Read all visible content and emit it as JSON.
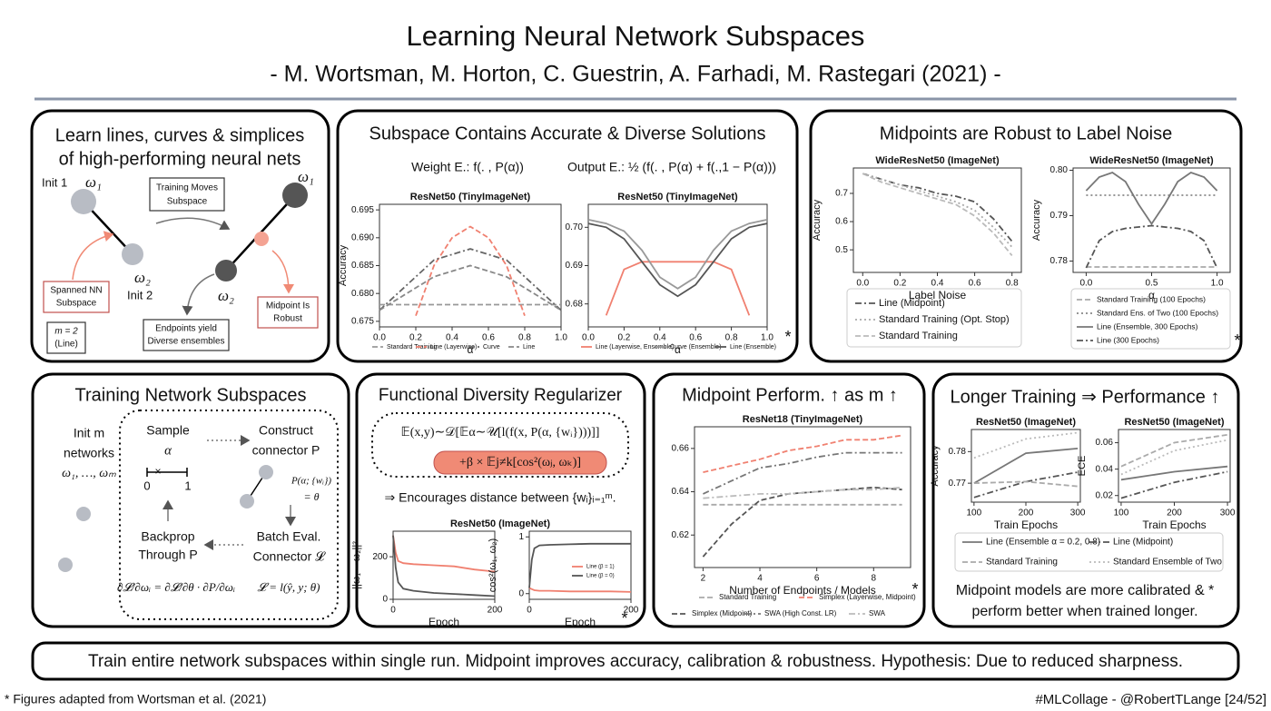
{
  "header": {
    "title": "Learning Neural Network Subspaces",
    "subtitle": "- M. Wortsman, M. Horton, C. Guestrin, A. Farhadi, M. Rastegari (2021) -"
  },
  "panels": [
    {
      "title": [
        "Learn lines, curves & simplices",
        "of high-performing neural nets"
      ],
      "labels": [
        "Init 1",
        "ω₁",
        "ω₂",
        "Init 2",
        "Training Moves",
        "Subspace",
        "ω₁",
        "ω₂",
        "Spanned NN",
        "Subspace",
        "Midpoint Is",
        "Robust",
        "Endpoints yield",
        "Diverse ensembles",
        "m = 2",
        "(Line)"
      ]
    },
    {
      "title": "Subspace Contains Accurate & Diverse Solutions",
      "captions": [
        "Weight E.: f(. , P(α))",
        "Output E.: ½ (f(. , P(α) + f(.,1 − P(α)))"
      ],
      "asterisk": "*",
      "charts": [
        {
          "type": "line",
          "title": "ResNet50 (TinyImageNet)",
          "xlabel": "α",
          "ylabel": "Accuracy",
          "x": [
            0,
            0.1,
            0.2,
            0.3,
            0.4,
            0.5,
            0.6,
            0.7,
            0.8,
            0.9,
            1
          ],
          "xlim": [
            0,
            1
          ],
          "xticks": [
            {
              "value": 0,
              "label": "0.0"
            },
            0.2,
            0.4,
            0.6,
            0.8,
            {
              "value": 1,
              "label": "1.0"
            }
          ],
          "ylim": [
            0.674,
            0.696
          ],
          "yticks": [
            0.675,
            {
              "value": 0.68,
              "label": "0.680"
            },
            0.685,
            {
              "value": 0.69,
              "label": "0.690"
            },
            0.695
          ],
          "series": [
            {
              "name": "Standard Training",
              "color": "#999999",
              "dash": "dashed",
              "values": [
                0.678,
                0.678,
                0.678,
                0.678,
                0.678,
                0.678,
                0.678,
                0.678,
                0.678,
                0.678,
                0.678
              ]
            },
            {
              "name": "Line (Layerwise)",
              "color": "#f08070",
              "dash": "dashed",
              "values": [
                null,
                null,
                0.676,
                0.685,
                0.69,
                0.692,
                0.69,
                0.685,
                0.676,
                null,
                null
              ]
            },
            {
              "name": "Curve",
              "color": "#666666",
              "dash": "dashdot",
              "values": [
                0.677,
                0.68,
                0.683,
                0.686,
                0.687,
                0.688,
                0.687,
                0.686,
                0.683,
                0.68,
                0.677
              ]
            },
            {
              "name": "Line",
              "color": "#888888",
              "dash": "dashed",
              "values": [
                0.677,
                0.679,
                0.681,
                0.683,
                0.684,
                0.685,
                0.684,
                0.683,
                0.681,
                0.679,
                0.677
              ]
            }
          ]
        },
        {
          "type": "line",
          "title": "ResNet50 (TinyImageNet)",
          "xlabel": "α",
          "x": [
            0,
            0.1,
            0.2,
            0.3,
            0.4,
            0.5,
            0.6,
            0.7,
            0.8,
            0.9,
            1
          ],
          "xlim": [
            0,
            1
          ],
          "xticks": [
            {
              "value": 0,
              "label": "0.0"
            },
            0.2,
            0.4,
            0.6,
            0.8,
            {
              "value": 1,
              "label": "1.0"
            }
          ],
          "ylim": [
            0.674,
            0.706
          ],
          "yticks": [
            0.68,
            0.69,
            {
              "value": 0.7,
              "label": "0.70"
            }
          ],
          "series": [
            {
              "name": "Line (Layerwise, Ensemble)",
              "color": "#f08070",
              "dash": "solid",
              "values": [
                null,
                0.677,
                0.689,
                0.691,
                0.691,
                0.691,
                0.691,
                0.691,
                0.689,
                0.677,
                null
              ]
            },
            {
              "name": "Curve (Ensemble)",
              "color": "#999999",
              "dash": "solid",
              "values": [
                0.702,
                0.701,
                0.699,
                0.694,
                0.687,
                0.684,
                0.687,
                0.694,
                0.699,
                0.701,
                0.702
              ]
            },
            {
              "name": "Line (Ensemble)",
              "color": "#555555",
              "dash": "solid",
              "values": [
                0.701,
                0.7,
                0.697,
                0.691,
                0.685,
                0.682,
                0.685,
                0.691,
                0.697,
                0.7,
                0.701
              ]
            }
          ]
        }
      ]
    },
    {
      "title": "Midpoints are Robust to Label Noise",
      "asterisk": "*",
      "charts": [
        {
          "type": "line",
          "title": "WideResNet50 (ImageNet)",
          "xlabel": "Label Noise",
          "ylabel": "Accuracy",
          "x": [
            0,
            0.1,
            0.2,
            0.3,
            0.4,
            0.5,
            0.6,
            0.7,
            0.8
          ],
          "xlim": [
            -0.05,
            0.85
          ],
          "xticks": [
            {
              "value": 0,
              "label": "0.0"
            },
            0.2,
            0.4,
            0.6,
            0.8
          ],
          "ylim": [
            0.42,
            0.79
          ],
          "yticks": [
            0.5,
            0.6,
            0.7
          ],
          "series": [
            {
              "name": "Line (Midpoint)",
              "color": "#555555",
              "dash": "dashdot",
              "values": [
                0.77,
                0.75,
                0.73,
                0.72,
                0.7,
                0.69,
                0.67,
                0.61,
                0.53
              ]
            },
            {
              "name": "Standard Training (Opt. Stop)",
              "color": "#aaaaaa",
              "dash": "dotted",
              "values": [
                0.77,
                0.75,
                0.73,
                0.71,
                0.69,
                0.67,
                0.64,
                0.58,
                0.51
              ]
            },
            {
              "name": "Standard Training",
              "color": "#bbbbbb",
              "dash": "dashed",
              "values": [
                0.77,
                0.74,
                0.72,
                0.7,
                0.68,
                0.66,
                0.62,
                0.56,
                0.48
              ]
            }
          ]
        },
        {
          "type": "line",
          "title": "WideResNet50 (ImageNet)",
          "xlabel": "α",
          "ylabel": "Accuracy",
          "x": [
            0,
            0.1,
            0.2,
            0.3,
            0.4,
            0.5,
            0.6,
            0.7,
            0.8,
            0.9,
            1
          ],
          "xlim": [
            -0.1,
            1.1
          ],
          "xticks": [
            {
              "value": 0,
              "label": "0.0"
            },
            0.5,
            {
              "value": 1,
              "label": "1.0"
            }
          ],
          "ylim": [
            0.7775,
            0.8005
          ],
          "yticks": [
            0.78,
            0.79,
            {
              "value": 0.8,
              "label": "0.80"
            }
          ],
          "series": [
            {
              "name": "Standard Training (100 Epochs)",
              "color": "#aaaaaa",
              "dash": "dashed",
              "values": [
                0.7787,
                0.7787,
                0.7787,
                0.7787,
                0.7787,
                0.7787,
                0.7787,
                0.7787,
                0.7787,
                0.7787,
                0.7787
              ]
            },
            {
              "name": "Standard Ens. of Two (100 Epochs)",
              "color": "#888888",
              "dash": "dotted",
              "values": [
                0.7945,
                0.7945,
                0.7945,
                0.7945,
                0.7945,
                0.7945,
                0.7945,
                0.7945,
                0.7945,
                0.7945,
                0.7945
              ]
            },
            {
              "name": "Line (Ensemble, 300 Epochs)",
              "color": "#777777",
              "dash": "solid",
              "values": [
                0.7955,
                0.7985,
                0.7995,
                0.7975,
                0.7925,
                0.7882,
                0.7925,
                0.7975,
                0.7995,
                0.7985,
                0.7955
              ]
            },
            {
              "name": "Line (300 Epochs)",
              "color": "#555555",
              "dash": "dashdot",
              "values": [
                0.7785,
                0.7845,
                0.7865,
                0.7872,
                0.7875,
                0.7878,
                0.7875,
                0.7872,
                0.7865,
                0.7845,
                0.7785
              ]
            }
          ]
        }
      ]
    },
    {
      "title": "Training Network Subspaces",
      "labels": [
        "Init m",
        "networks",
        "ω₁, …, ωₘ",
        "Sample",
        "α",
        "0",
        "1",
        "Construct",
        "connector P",
        "P(α; {wᵢ})",
        "= θ",
        "Batch Eval.",
        "Connector 𝓛",
        "𝓛 = l(ŷ, y; θ)",
        "Backprop",
        "Through P",
        "∂𝓛/∂ωᵢ = ∂𝓛/∂θ · ∂P/∂ωᵢ"
      ]
    },
    {
      "title": "Functional Diversity Regularizer",
      "labels": [
        "𝔼(x,y)∼𝒟[𝔼α∼𝒰[l(f(x, P(α, {wᵢ})))]]",
        "+β × 𝔼j≠k[cos²(ωⱼ, ωₖ)]",
        "⇒ Encourages distance between {wᵢ}ᵢ₌₁ᵐ."
      ],
      "asterisk": "*",
      "charts": [
        {
          "type": "line",
          "title": "ResNet50 (ImageNet)",
          "xlabel": "Epoch",
          "ylabel": "||ω₁ − ω₂||²",
          "x": [
            0,
            5,
            10,
            20,
            40,
            80,
            120,
            160,
            200
          ],
          "xlim": [
            0,
            200
          ],
          "xticks": [
            0,
            200
          ],
          "ylim": [
            0,
            320
          ],
          "yticks": [
            0,
            200
          ],
          "series": [
            {
              "color": "#f08070",
              "dash": "solid",
              "values": [
                300,
                220,
                180,
                170,
                165,
                160,
                155,
                140,
                130
              ]
            },
            {
              "color": "#555555",
              "dash": "solid",
              "values": [
                300,
                150,
                80,
                50,
                40,
                30,
                25,
                20,
                15
              ]
            }
          ]
        },
        {
          "type": "line",
          "xlabel": "Epoch",
          "ylabel": "cos²(ω₁, ω₂)",
          "x": [
            0,
            5,
            10,
            20,
            40,
            80,
            120,
            160,
            200
          ],
          "xlim": [
            0,
            200
          ],
          "xticks": [
            0,
            200
          ],
          "ylim": [
            -0.1,
            1.1
          ],
          "yticks": [
            0,
            1
          ],
          "series": [
            {
              "name": "Line (β = 1)",
              "color": "#f08070",
              "dash": "solid",
              "values": [
                0.1,
                0.08,
                0.06,
                0.05,
                0.05,
                0.04,
                0.04,
                0.04,
                0.03
              ]
            },
            {
              "name": "Line (β = 0)",
              "color": "#555555",
              "dash": "solid",
              "values": [
                0.1,
                0.6,
                0.8,
                0.85,
                0.86,
                0.87,
                0.88,
                0.88,
                0.88
              ]
            }
          ]
        }
      ]
    },
    {
      "title": "Midpoint Perform. ↑ as m ↑",
      "asterisk": "*",
      "charts": [
        {
          "type": "line",
          "title": "ResNet18 (TinyImageNet)",
          "xlabel": "Number of Endpoints / Models",
          "x": [
            2,
            3,
            4,
            5,
            6,
            7,
            8,
            9
          ],
          "xlim": [
            1.7,
            9.3
          ],
          "xticks": [
            2,
            4,
            6,
            8
          ],
          "ylim": [
            0.605,
            0.67
          ],
          "yticks": [
            0.62,
            0.64,
            0.66
          ],
          "series": [
            {
              "name": "Standard Training",
              "color": "#aaaaaa",
              "dash": "dashed",
              "values": [
                0.634,
                0.634,
                0.634,
                0.634,
                0.634,
                0.634,
                0.634,
                0.634
              ]
            },
            {
              "name": "Simplex (Layerwise, Midpoint)",
              "color": "#f08070",
              "dash": "dashed",
              "values": [
                0.649,
                0.652,
                0.655,
                0.659,
                0.661,
                0.664,
                0.664,
                0.666
              ]
            },
            {
              "name": "Simplex (Midpoint)",
              "color": "#555555",
              "dash": "dashed",
              "values": [
                0.61,
                0.625,
                0.636,
                0.639,
                0.64,
                0.641,
                0.642,
                0.641
              ]
            },
            {
              "name": "SWA (High Const. LR)",
              "color": "#777777",
              "dash": "dashdot",
              "values": [
                0.639,
                0.645,
                0.651,
                0.653,
                0.656,
                0.658,
                0.658,
                0.658
              ]
            },
            {
              "name": "SWA",
              "color": "#bbbbbb",
              "dash": "dashdot",
              "values": [
                0.637,
                0.638,
                0.639,
                0.639,
                0.64,
                0.641,
                0.641,
                0.642
              ]
            }
          ]
        }
      ]
    },
    {
      "title": "Longer Training ⇒ Performance ↑",
      "note": [
        "Midpoint models are more calibrated & *",
        "perform better when trained longer."
      ],
      "charts": [
        {
          "type": "line",
          "title": "ResNet50 (ImageNet)",
          "xlabel": "Train Epochs",
          "ylabel": "Accuracy",
          "x": [
            100,
            200,
            300
          ],
          "xlim": [
            95,
            305
          ],
          "xticks": [
            100,
            200,
            300
          ],
          "ylim": [
            0.764,
            0.787
          ],
          "yticks": [
            0.77,
            0.78
          ],
          "series": [
            {
              "name": "Line (Ensemble α = 0.2, 0.8)",
              "color": "#777777",
              "dash": "solid",
              "values": [
                0.77,
                0.7795,
                0.781
              ]
            },
            {
              "name": "Line (Midpoint)",
              "color": "#555555",
              "dash": "dashdot",
              "values": [
                0.7655,
                0.7705,
                0.7735
              ]
            },
            {
              "name": "Standard Training",
              "color": "#aaaaaa",
              "dash": "dashed",
              "values": [
                0.77,
                0.7705,
                0.769
              ]
            },
            {
              "name": "Standard Ensemble of Two",
              "color": "#bbbbbb",
              "dash": "dotted",
              "values": [
                0.778,
                0.784,
                0.786
              ]
            }
          ]
        },
        {
          "type": "line",
          "title": "ResNet50 (ImageNet)",
          "xlabel": "Train Epochs",
          "ylabel": "ECE",
          "x": [
            100,
            200,
            300
          ],
          "xlim": [
            95,
            305
          ],
          "xticks": [
            100,
            200,
            300
          ],
          "ylim": [
            0.015,
            0.07
          ],
          "yticks": [
            0.02,
            0.04,
            0.06
          ],
          "series": [
            {
              "color": "#777777",
              "dash": "solid",
              "values": [
                0.032,
                0.038,
                0.042
              ]
            },
            {
              "color": "#555555",
              "dash": "dashdot",
              "values": [
                0.018,
                0.03,
                0.038
              ]
            },
            {
              "color": "#aaaaaa",
              "dash": "dashed",
              "values": [
                0.042,
                0.06,
                0.066
              ]
            },
            {
              "color": "#bbbbbb",
              "dash": "dotted",
              "values": [
                0.036,
                0.054,
                0.062
              ]
            }
          ]
        }
      ]
    }
  ],
  "summary": "Train entire network subspaces within single run. Midpoint improves accuracy, calibration & robustness. Hypothesis: Due to reduced sharpness.",
  "footer": {
    "left": "* Figures adapted from Wortsman et al. (2021)",
    "right": "#MLCollage - @RobertTLange [24/52]"
  }
}
